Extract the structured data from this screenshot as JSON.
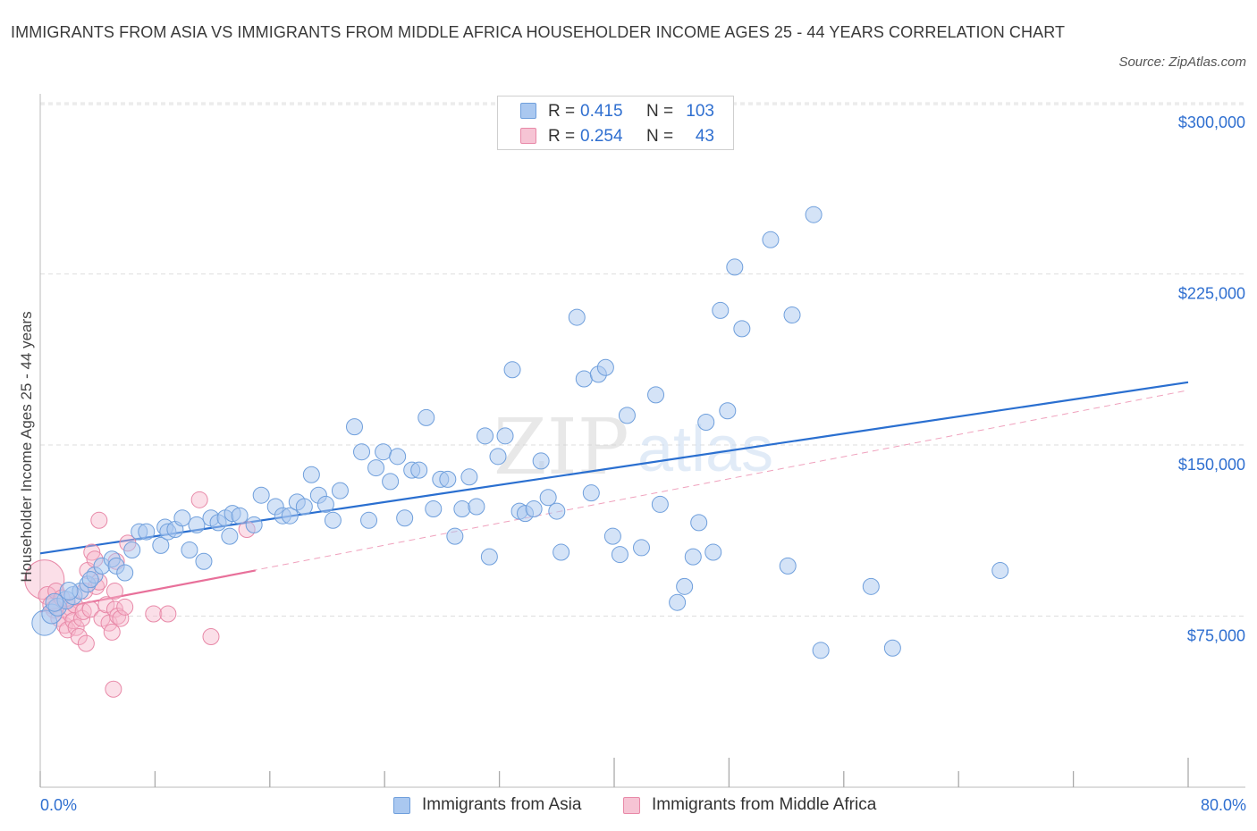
{
  "title": "IMMIGRANTS FROM ASIA VS IMMIGRANTS FROM MIDDLE AFRICA HOUSEHOLDER INCOME AGES 25 - 44 YEARS CORRELATION CHART",
  "source": "Source: ZipAtlas.com",
  "watermark": {
    "zip": "ZIP",
    "atlas": "atlas"
  },
  "colors": {
    "asia_fill": "#aac8f0",
    "asia_stroke": "#6f9fdc",
    "asia_line": "#2a6fd0",
    "africa_fill": "#f6b8cc",
    "africa_stroke": "#e889a8",
    "africa_line": "#e8709a",
    "axis_label": "#2f6fd0",
    "grid": "#dedede"
  },
  "legend_top": [
    {
      "r_label": "R =",
      "r_value": "0.415",
      "n_label": "N =",
      "n_value": "103"
    },
    {
      "r_label": "R =",
      "r_value": "0.254",
      "n_label": "N =",
      "n_value": "43"
    }
  ],
  "legend_bottom": [
    "Immigrants from Asia",
    "Immigrants from Middle Africa"
  ],
  "x_axis": {
    "min_label": "0.0%",
    "max_label": "80.0%"
  },
  "y_axis": {
    "title": "Householder Income Ages 25 - 44 years",
    "tick_labels": [
      "$300,000",
      "$225,000",
      "$150,000",
      "$75,000"
    ]
  },
  "chart_data": {
    "type": "scatter",
    "title": "IMMIGRANTS FROM ASIA VS IMMIGRANTS FROM MIDDLE AFRICA HOUSEHOLDER INCOME AGES 25 - 44 YEARS CORRELATION CHART",
    "xlabel": "",
    "ylabel": "Householder Income Ages 25 - 44 years",
    "xlim": [
      0,
      80
    ],
    "ylim": [
      0,
      300000
    ],
    "yticks": [
      75000,
      150000,
      225000,
      300000
    ],
    "grid": true,
    "legend": "bottom",
    "series": [
      {
        "name": "Immigrants from Asia",
        "r": 0.415,
        "n": 103,
        "trend": {
          "x": [
            0,
            80
          ],
          "y": [
            102500,
            177500
          ]
        },
        "points": [
          [
            0.3,
            72000,
            14
          ],
          [
            0.8,
            76000,
            11
          ],
          [
            1.2,
            79000,
            10
          ],
          [
            1.8,
            82000,
            10
          ],
          [
            2.3,
            84000,
            10
          ],
          [
            2.8,
            86000,
            9
          ],
          [
            3.3,
            89000,
            9
          ],
          [
            3.8,
            93000,
            9
          ],
          [
            4.3,
            97000,
            9
          ],
          [
            5.0,
            100000,
            9
          ],
          [
            5.3,
            97000,
            9
          ],
          [
            5.9,
            94000,
            9
          ],
          [
            6.4,
            104000,
            9
          ],
          [
            6.9,
            112000,
            9
          ],
          [
            7.4,
            112000,
            9
          ],
          [
            8.4,
            106000,
            9
          ],
          [
            8.7,
            114000,
            9
          ],
          [
            8.9,
            112000,
            9
          ],
          [
            9.4,
            113000,
            9
          ],
          [
            9.9,
            118000,
            9
          ],
          [
            10.4,
            104000,
            9
          ],
          [
            10.9,
            115000,
            9
          ],
          [
            11.4,
            99000,
            9
          ],
          [
            11.9,
            118000,
            9
          ],
          [
            12.4,
            116000,
            9
          ],
          [
            12.9,
            118000,
            9
          ],
          [
            13.2,
            110000,
            9
          ],
          [
            13.4,
            120000,
            9
          ],
          [
            13.9,
            119000,
            9
          ],
          [
            14.9,
            115000,
            9
          ],
          [
            15.4,
            128000,
            9
          ],
          [
            16.4,
            123000,
            9
          ],
          [
            16.9,
            119000,
            9
          ],
          [
            17.4,
            119000,
            9
          ],
          [
            17.9,
            125000,
            9
          ],
          [
            18.4,
            123000,
            9
          ],
          [
            18.9,
            137000,
            9
          ],
          [
            19.4,
            128000,
            9
          ],
          [
            19.9,
            124000,
            9
          ],
          [
            20.4,
            117000,
            9
          ],
          [
            20.9,
            130000,
            9
          ],
          [
            21.9,
            158000,
            9
          ],
          [
            22.4,
            147000,
            9
          ],
          [
            22.9,
            117000,
            9
          ],
          [
            23.4,
            140000,
            9
          ],
          [
            23.9,
            147000,
            9
          ],
          [
            24.4,
            134000,
            9
          ],
          [
            24.9,
            145000,
            9
          ],
          [
            25.4,
            118000,
            9
          ],
          [
            25.9,
            139000,
            9
          ],
          [
            26.4,
            139000,
            9
          ],
          [
            26.9,
            162000,
            9
          ],
          [
            27.4,
            122000,
            9
          ],
          [
            27.9,
            135000,
            9
          ],
          [
            28.4,
            135000,
            9
          ],
          [
            28.9,
            110000,
            9
          ],
          [
            29.4,
            122000,
            9
          ],
          [
            29.9,
            136000,
            9
          ],
          [
            30.4,
            123000,
            9
          ],
          [
            31.0,
            154000,
            9
          ],
          [
            31.3,
            101000,
            9
          ],
          [
            31.9,
            145000,
            9
          ],
          [
            32.4,
            154000,
            9
          ],
          [
            32.9,
            183000,
            9
          ],
          [
            33.4,
            121000,
            9
          ],
          [
            33.8,
            120000,
            9
          ],
          [
            34.4,
            122000,
            9
          ],
          [
            34.9,
            143000,
            9
          ],
          [
            35.4,
            127000,
            9
          ],
          [
            36.0,
            121000,
            9
          ],
          [
            36.3,
            103000,
            9
          ],
          [
            37.4,
            206000,
            9
          ],
          [
            37.9,
            179000,
            9
          ],
          [
            38.4,
            129000,
            9
          ],
          [
            38.9,
            181000,
            9
          ],
          [
            39.4,
            184000,
            9
          ],
          [
            39.9,
            110000,
            9
          ],
          [
            40.4,
            102000,
            9
          ],
          [
            40.9,
            163000,
            9
          ],
          [
            41.9,
            105000,
            9
          ],
          [
            42.9,
            172000,
            9
          ],
          [
            43.2,
            124000,
            9
          ],
          [
            44.4,
            81000,
            9
          ],
          [
            44.9,
            88000,
            9
          ],
          [
            45.5,
            101000,
            9
          ],
          [
            45.9,
            116000,
            9
          ],
          [
            46.4,
            160000,
            9
          ],
          [
            46.9,
            103000,
            9
          ],
          [
            47.4,
            209000,
            9
          ],
          [
            47.9,
            165000,
            9
          ],
          [
            48.4,
            228000,
            9
          ],
          [
            48.9,
            201000,
            9
          ],
          [
            50.9,
            240000,
            9
          ],
          [
            52.1,
            97000,
            9
          ],
          [
            52.4,
            207000,
            9
          ],
          [
            53.9,
            251000,
            9
          ],
          [
            54.4,
            60000,
            9
          ],
          [
            57.9,
            88000,
            9
          ],
          [
            59.4,
            61000,
            9
          ],
          [
            66.9,
            95000,
            9
          ],
          [
            1.0,
            81000,
            10
          ],
          [
            2.0,
            86000,
            10
          ],
          [
            3.5,
            91000,
            9
          ]
        ]
      },
      {
        "name": "Immigrants from Middle Africa",
        "r": 0.254,
        "n": 43,
        "trend": {
          "x": [
            0,
            15
          ],
          "y": [
            77000,
            95000
          ]
        },
        "trend_extended": {
          "x": [
            0,
            80
          ],
          "y": [
            77000,
            174000
          ]
        },
        "points": [
          [
            0.3,
            91000,
            22
          ],
          [
            0.5,
            84000,
            10
          ],
          [
            0.8,
            80000,
            10
          ],
          [
            1.0,
            78000,
            10
          ],
          [
            1.1,
            86000,
            9
          ],
          [
            1.3,
            74000,
            9
          ],
          [
            1.5,
            83000,
            9
          ],
          [
            1.7,
            71000,
            9
          ],
          [
            1.9,
            69000,
            9
          ],
          [
            2.0,
            79000,
            9
          ],
          [
            2.1,
            76000,
            9
          ],
          [
            2.3,
            73000,
            9
          ],
          [
            2.4,
            80000,
            9
          ],
          [
            2.5,
            70000,
            9
          ],
          [
            2.7,
            66000,
            9
          ],
          [
            2.9,
            74000,
            9
          ],
          [
            3.0,
            77000,
            9
          ],
          [
            3.1,
            86000,
            9
          ],
          [
            3.2,
            63000,
            9
          ],
          [
            3.3,
            95000,
            9
          ],
          [
            3.5,
            78000,
            9
          ],
          [
            3.6,
            103000,
            9
          ],
          [
            3.8,
            100000,
            9
          ],
          [
            3.9,
            88000,
            9
          ],
          [
            4.1,
            90000,
            9
          ],
          [
            4.1,
            117000,
            9
          ],
          [
            4.3,
            74000,
            9
          ],
          [
            4.6,
            80000,
            9
          ],
          [
            4.8,
            72000,
            9
          ],
          [
            5.0,
            68000,
            9
          ],
          [
            5.2,
            86000,
            9
          ],
          [
            5.2,
            78000,
            9
          ],
          [
            5.4,
            75000,
            9
          ],
          [
            5.6,
            74000,
            9
          ],
          [
            5.9,
            79000,
            9
          ],
          [
            5.1,
            43000,
            9
          ],
          [
            5.3,
            99000,
            9
          ],
          [
            6.1,
            107000,
            9
          ],
          [
            7.9,
            76000,
            9
          ],
          [
            8.9,
            76000,
            9
          ],
          [
            11.1,
            126000,
            9
          ],
          [
            11.9,
            66000,
            9
          ],
          [
            14.4,
            113000,
            9
          ]
        ]
      }
    ]
  }
}
